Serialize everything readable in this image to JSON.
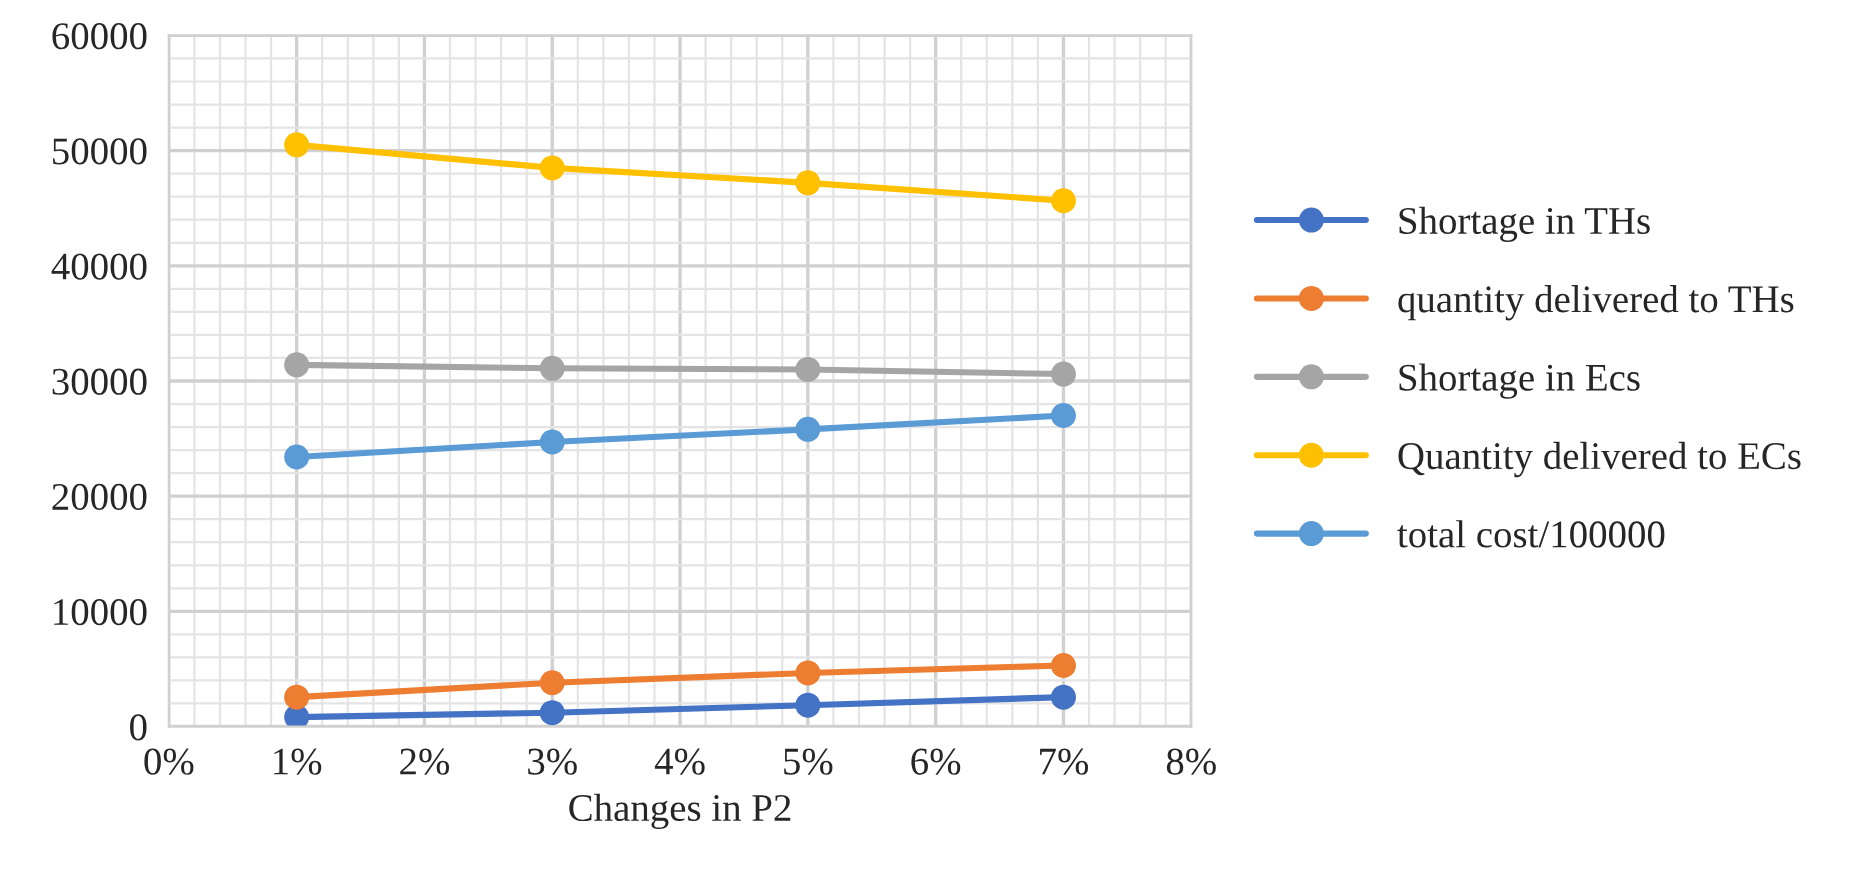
{
  "chart_data": {
    "type": "line",
    "xlabel": "Changes in P2",
    "x": [
      1,
      3,
      5,
      7
    ],
    "series": [
      {
        "name": "Shortage in THs",
        "color": "#4472c4",
        "values": [
          820,
          1200,
          1850,
          2550
        ]
      },
      {
        "name": "quantity delivered to THs",
        "color": "#ed7d31",
        "values": [
          2550,
          3800,
          4650,
          5300
        ]
      },
      {
        "name": "Shortage in Ecs",
        "color": "#a5a5a5",
        "values": [
          31400,
          31100,
          31000,
          30600
        ]
      },
      {
        "name": "Quantity delivered to ECs",
        "color": "#ffc000",
        "values": [
          50500,
          48500,
          47200,
          45650
        ]
      },
      {
        "name": "total cost/100000",
        "color": "#5b9bd5",
        "values": [
          23400,
          24700,
          25800,
          27000
        ]
      }
    ],
    "xlim": [
      0,
      8
    ],
    "xticks": [
      {
        "value": 0,
        "label": "0%"
      },
      {
        "value": 1,
        "label": "1%"
      },
      {
        "value": 2,
        "label": "2%"
      },
      {
        "value": 3,
        "label": "3%"
      },
      {
        "value": 4,
        "label": "4%"
      },
      {
        "value": 5,
        "label": "5%"
      },
      {
        "value": 6,
        "label": "6%"
      },
      {
        "value": 7,
        "label": "7%"
      },
      {
        "value": 8,
        "label": "8%"
      }
    ],
    "ylim": [
      0,
      60000
    ],
    "yticks": [
      0,
      10000,
      20000,
      30000,
      40000,
      50000,
      60000
    ],
    "grid": true,
    "legend": "right",
    "marker": "circle",
    "line_style": "solid"
  }
}
